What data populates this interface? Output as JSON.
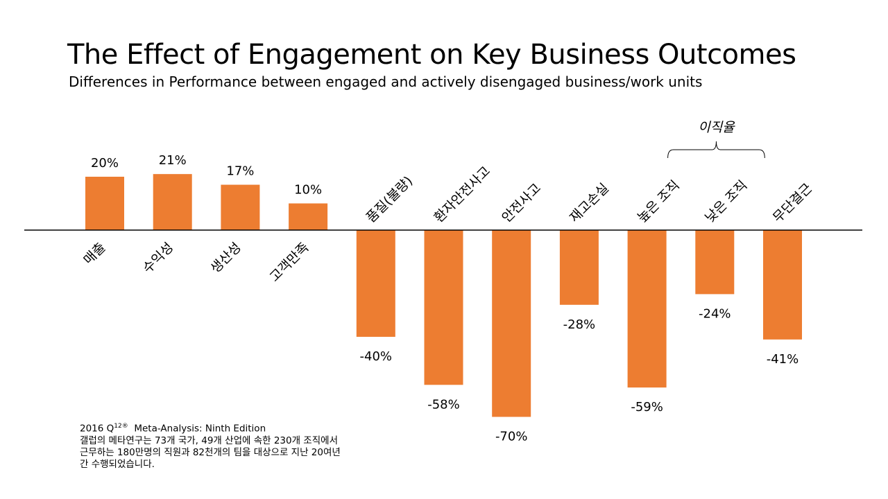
{
  "chart_data": {
    "type": "bar",
    "title": "The Effect of Engagement on Key Business Outcomes",
    "subtitle": "Differences in Performance between engaged and actively disengaged business/work units",
    "categories": [
      "매출",
      "수익성",
      "생산성",
      "고객만족",
      "품질(불량)",
      "환자안전사고",
      "안전사고",
      "재고손실",
      "높은 조직",
      "낮은 조직",
      "무단결근"
    ],
    "values": [
      20,
      21,
      17,
      10,
      -40,
      -58,
      -70,
      -28,
      -59,
      -24,
      -41
    ],
    "value_labels": [
      "20%",
      "21%",
      "17%",
      "10%",
      "-40%",
      "-58%",
      "-70%",
      "-28%",
      "-59%",
      "-24%",
      "-41%"
    ],
    "group_annotation": {
      "label": "이직율",
      "categories": [
        "높은 조직",
        "낮은 조직"
      ]
    },
    "bar_color": "#ED7D31",
    "grid": false,
    "legend": "none"
  },
  "note": {
    "line1_pre": "2016 Q",
    "line1_sup": "12®",
    "line1_post": "  Meta-Analysis: Ninth Edition",
    "line2": "갤럽의 메타연구는 73개 국가, 49개 산업에 속한 230개 조직에서",
    "line3": "근무하는 180만명의 직원과 82천개의 팀을 대상으로 지난 20여년",
    "line4": "간 수행되었습니다."
  }
}
